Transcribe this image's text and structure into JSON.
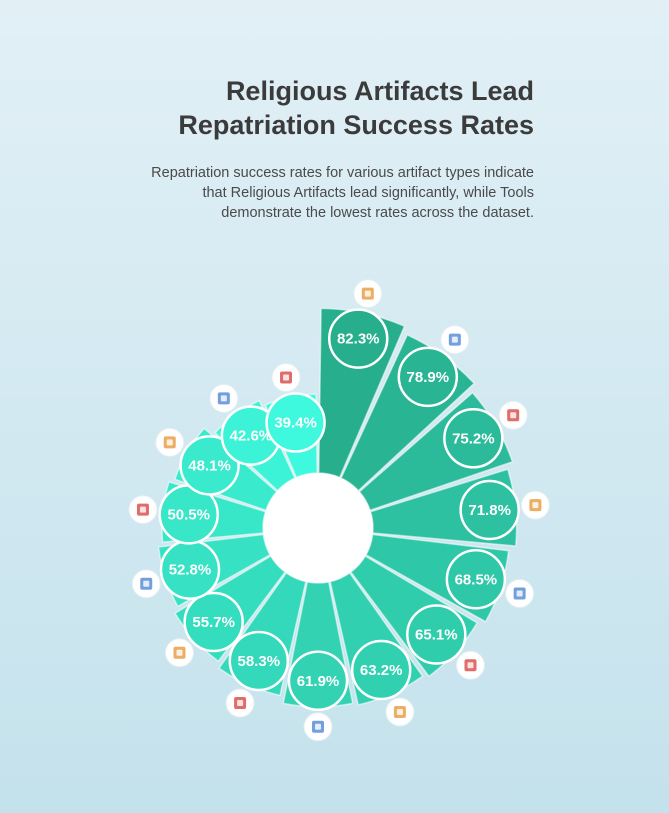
{
  "title": "Religious Artifacts Lead Repatriation Success Rates",
  "subtitle": "Repatriation success rates for various artifact types indicate that Religious Artifacts lead significantly, while Tools demonstrate the lowest rates across the dataset.",
  "chart_data": {
    "type": "bar",
    "layout": "radial",
    "title": "Religious Artifacts Lead Repatriation Success Rates",
    "subtitle": "Repatriation success rates for various artifact types indicate that Religious Artifacts lead significantly, while Tools demonstrate the lowest rates across the dataset.",
    "value_suffix": "%",
    "ylim": [
      0,
      100
    ],
    "values": [
      82.3,
      78.9,
      75.2,
      71.8,
      68.5,
      65.1,
      63.2,
      61.9,
      58.3,
      55.7,
      52.8,
      50.5,
      48.1,
      42.6,
      39.4
    ],
    "labels": [
      "82.3%",
      "78.9%",
      "75.2%",
      "71.8%",
      "68.5%",
      "65.1%",
      "63.2%",
      "61.9%",
      "58.3%",
      "55.7%",
      "52.8%",
      "50.5%",
      "48.1%",
      "42.6%",
      "39.4%"
    ],
    "icons": [
      "cathedral-icon",
      "document-icon",
      "open-book-icon",
      "paintings-icon",
      "bust-sculpture-icon",
      "music-instrument-icon",
      "painting-easel-icon",
      "craftsman-icon",
      "pottery-bowl-icon",
      "necklace-icon",
      "textile-basket-icon",
      "furniture-icon",
      "helmet-icon",
      "weapons-icon",
      "tools-icon"
    ],
    "colors": {
      "darkest": "#27af8d",
      "lightest": "#3ef9dd",
      "edge": "#ffffff",
      "center": "#ffffff"
    }
  }
}
